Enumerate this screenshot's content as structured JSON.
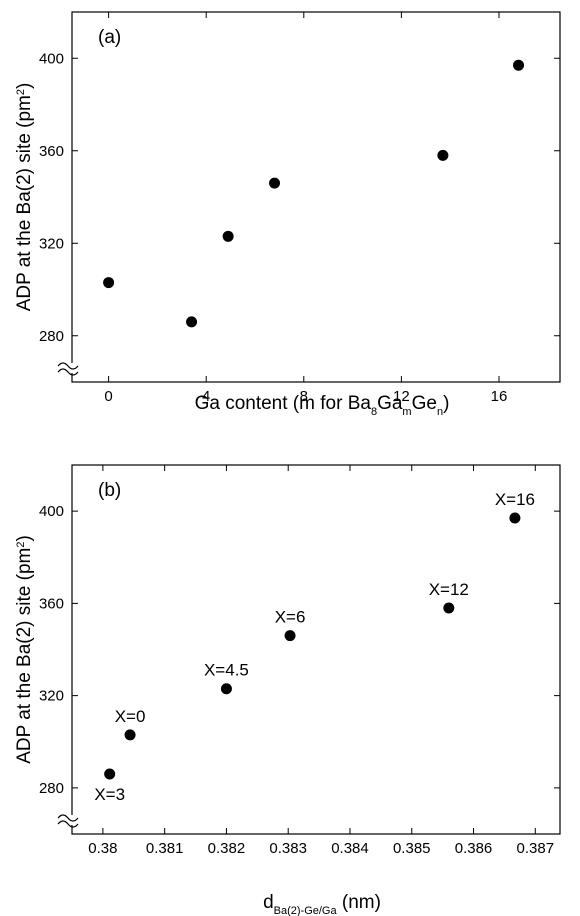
{
  "chart_data": [
    {
      "type": "scatter",
      "panel_label": "(a)",
      "xlabel_parts": [
        "Ga content (m for Ba",
        "8",
        "Ga",
        "m",
        "Ge",
        "n",
        ")"
      ],
      "ylabel_parts": [
        "ADP at the Ba(2) site (pm",
        "2",
        ")"
      ],
      "xlim": [
        -1.5,
        18.5
      ],
      "ylim": [
        260,
        420
      ],
      "xticks": [
        0,
        4,
        8,
        12,
        16
      ],
      "yticks": [
        280,
        320,
        360,
        400
      ],
      "axis_break": "y",
      "points": [
        {
          "x": 0,
          "y": 303
        },
        {
          "x": 3.4,
          "y": 286
        },
        {
          "x": 4.9,
          "y": 323
        },
        {
          "x": 6.8,
          "y": 346
        },
        {
          "x": 13.7,
          "y": 358
        },
        {
          "x": 16.8,
          "y": 397
        }
      ]
    },
    {
      "type": "scatter",
      "panel_label": "(b)",
      "xlabel_parts": [
        "d",
        "Ba(2)-Ge/Ga",
        " (nm)"
      ],
      "ylabel_parts": [
        "ADP at the Ba(2) site (pm",
        "2",
        ")"
      ],
      "xlim": [
        0.3795,
        0.3874
      ],
      "ylim": [
        260,
        420
      ],
      "xticks": [
        0.38,
        0.381,
        0.382,
        0.383,
        0.384,
        0.385,
        0.386,
        0.387
      ],
      "xtick_labels": [
        "0.38",
        "0.381",
        "0.382",
        "0.383",
        "0.384",
        "0.385",
        "0.386",
        "0.387"
      ],
      "yticks": [
        280,
        320,
        360,
        400
      ],
      "axis_break": "y",
      "points": [
        {
          "x": 0.38044,
          "y": 303,
          "label": "X=0",
          "label_pos": "above"
        },
        {
          "x": 0.38011,
          "y": 286,
          "label": "X=3",
          "label_pos": "below"
        },
        {
          "x": 0.382,
          "y": 323,
          "label": "X=4.5",
          "label_pos": "above"
        },
        {
          "x": 0.38303,
          "y": 346,
          "label": "X=6",
          "label_pos": "above"
        },
        {
          "x": 0.3856,
          "y": 358,
          "label": "X=12",
          "label_pos": "above"
        },
        {
          "x": 0.38667,
          "y": 397,
          "label": "X=16",
          "label_pos": "above"
        }
      ]
    }
  ]
}
